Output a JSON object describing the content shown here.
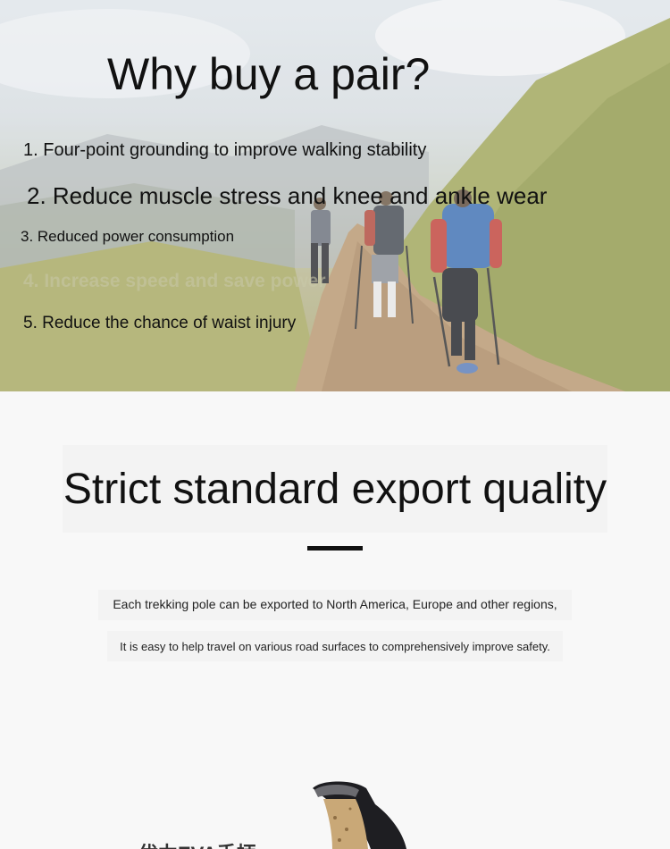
{
  "hero": {
    "title": "Why buy a pair?",
    "reasons": [
      "1. Four-point grounding to improve walking stability",
      "2. Reduce muscle stress and knee and ankle wear",
      "3. Reduced power consumption",
      "4. Increase speed and save power",
      "5. Reduce the chance of waist injury"
    ]
  },
  "quality": {
    "title": "Strict standard export quality",
    "description_line1": "Each trekking pole can be exported to North America, Europe and other regions,",
    "description_line2": "It is easy to help travel on various road surfaces to comprehensively improve safety."
  },
  "product": {
    "label": "优力EVA手柄"
  }
}
